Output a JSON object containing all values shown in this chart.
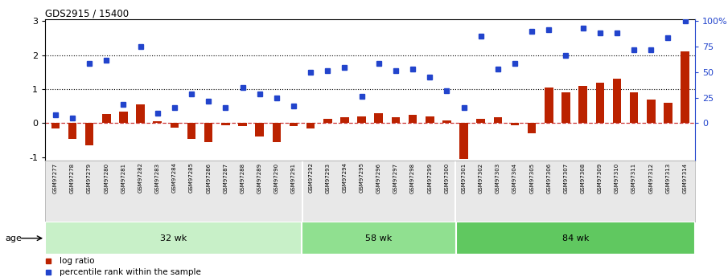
{
  "title": "GDS2915 / 15400",
  "samples": [
    "GSM97277",
    "GSM97278",
    "GSM97279",
    "GSM97280",
    "GSM97281",
    "GSM97282",
    "GSM97283",
    "GSM97284",
    "GSM97285",
    "GSM97286",
    "GSM97287",
    "GSM97288",
    "GSM97289",
    "GSM97290",
    "GSM97291",
    "GSM97292",
    "GSM97293",
    "GSM97294",
    "GSM97295",
    "GSM97296",
    "GSM97297",
    "GSM97298",
    "GSM97299",
    "GSM97300",
    "GSM97301",
    "GSM97302",
    "GSM97303",
    "GSM97304",
    "GSM97305",
    "GSM97306",
    "GSM97307",
    "GSM97308",
    "GSM97309",
    "GSM97310",
    "GSM97311",
    "GSM97312",
    "GSM97313",
    "GSM97314"
  ],
  "log_ratio": [
    -0.15,
    -0.45,
    -0.65,
    0.28,
    0.35,
    0.55,
    0.05,
    -0.12,
    -0.45,
    -0.55,
    -0.05,
    -0.08,
    -0.4,
    -0.55,
    -0.08,
    -0.15,
    0.12,
    0.18,
    0.2,
    0.3,
    0.18,
    0.25,
    0.2,
    0.08,
    -1.05,
    0.12,
    0.18,
    -0.05,
    -0.3,
    1.05,
    0.9,
    1.1,
    1.2,
    1.3,
    0.9,
    0.7,
    0.6,
    2.1
  ],
  "percentile": [
    0.25,
    0.15,
    1.75,
    1.85,
    0.55,
    2.25,
    0.3,
    0.45,
    0.85,
    0.65,
    0.45,
    1.05,
    0.85,
    0.75,
    0.5,
    1.5,
    1.55,
    1.65,
    0.8,
    1.75,
    1.55,
    1.6,
    1.35,
    0.95,
    0.45,
    2.55,
    1.6,
    1.75,
    2.7,
    2.75,
    2.0,
    2.8,
    2.65,
    2.65,
    2.15,
    2.15,
    2.5,
    3.0
  ],
  "groups": [
    {
      "label": "32 wk",
      "start": 0,
      "end": 15,
      "color": "#c8f0c8"
    },
    {
      "label": "58 wk",
      "start": 15,
      "end": 24,
      "color": "#90e090"
    },
    {
      "label": "84 wk",
      "start": 24,
      "end": 38,
      "color": "#60c860"
    }
  ],
  "bar_color": "#bb2200",
  "dot_color": "#2244cc",
  "ylim": [
    -1.1,
    3.05
  ],
  "yticks_left": [
    -1,
    0,
    1,
    2,
    3
  ],
  "yticks_right_vals": [
    0,
    25,
    50,
    75,
    100
  ],
  "yticks_right_pos": [
    0.0,
    0.75,
    1.5,
    2.25,
    3.0
  ],
  "hlines": [
    1.0,
    2.0
  ],
  "zero_line_color": "#cc3333",
  "legend_items": [
    {
      "label": "log ratio",
      "color": "#bb2200"
    },
    {
      "label": "percentile rank within the sample",
      "color": "#2244cc"
    }
  ],
  "age_label": "age",
  "group_dividers": [
    15,
    24
  ]
}
